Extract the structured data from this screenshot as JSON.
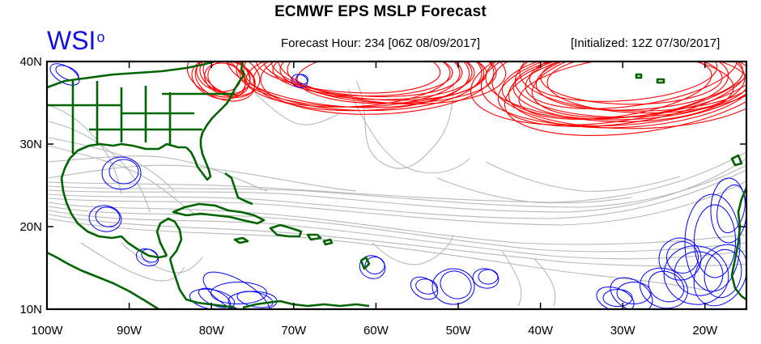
{
  "title": "ECMWF EPS MSLP Forecast",
  "logo": {
    "text": "WSI",
    "mark": "o"
  },
  "forecast_hour": "Forecast Hour: 234 [06Z 08/09/2017]",
  "initialized": "[Initialized: 12Z 07/30/2017]",
  "lat_labels": [
    "40N",
    "30N",
    "20N",
    "10N"
  ],
  "lon_labels": [
    "100W",
    "90W",
    "80W",
    "70W",
    "60W",
    "50W",
    "40W",
    "30W",
    "20W"
  ],
  "colors": {
    "high_contours": "#ff0000",
    "low_contours": "#0000ff",
    "tracks": "#b8b8b8",
    "land_outline": "#006400"
  }
}
